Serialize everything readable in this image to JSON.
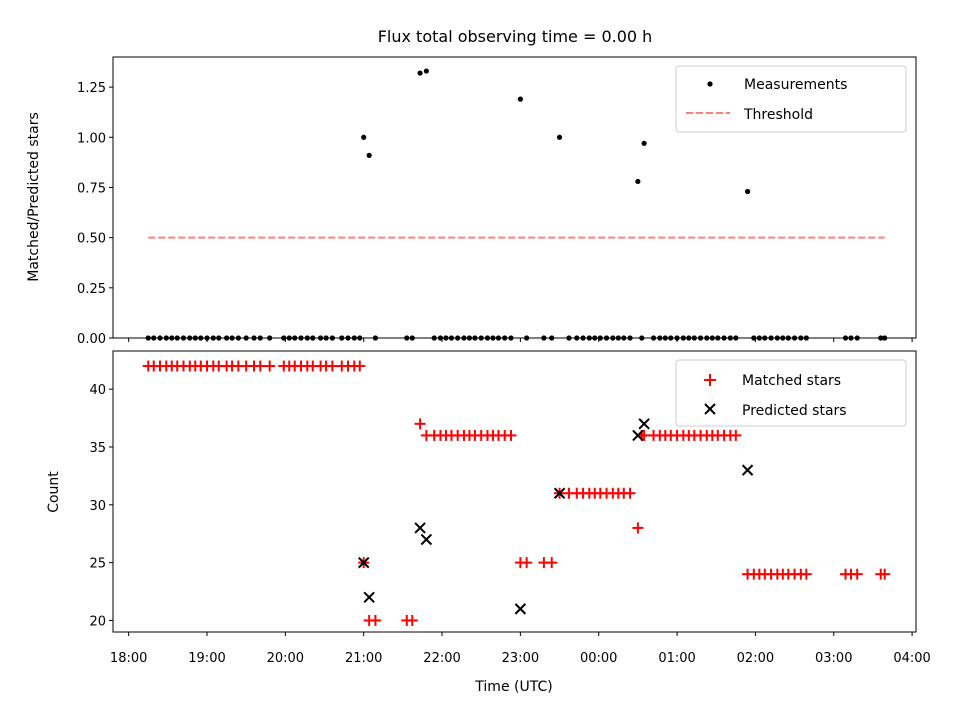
{
  "chart_data": [
    {
      "type": "scatter",
      "title": "Flux total observing time = 0.00 h",
      "ylabel": "Matched/Predicted stars",
      "xlabel": "",
      "x_unit": "hours since 18:00 UTC",
      "xlim": [
        -0.2,
        10.05
      ],
      "ylim": [
        0.0,
        1.4
      ],
      "yticks": [
        0.0,
        0.25,
        0.5,
        0.75,
        1.0,
        1.25
      ],
      "ytick_labels": [
        "0.00",
        "0.25",
        "0.50",
        "0.75",
        "1.00",
        "1.25"
      ],
      "legend_position": "top-right",
      "legend": [
        {
          "label": "Measurements",
          "marker": "dot",
          "color": "#000000"
        },
        {
          "label": "Threshold",
          "marker": "dashed-line",
          "color": "#ff7f7f"
        }
      ],
      "series": [
        {
          "name": "Measurements",
          "color": "#000000",
          "points": [
            [
              0.25,
              0
            ],
            [
              0.32,
              0
            ],
            [
              0.4,
              0
            ],
            [
              0.48,
              0
            ],
            [
              0.55,
              0
            ],
            [
              0.62,
              0
            ],
            [
              0.7,
              0
            ],
            [
              0.78,
              0
            ],
            [
              0.85,
              0
            ],
            [
              0.92,
              0
            ],
            [
              1.0,
              0
            ],
            [
              1.08,
              0
            ],
            [
              1.15,
              0
            ],
            [
              1.25,
              0
            ],
            [
              1.32,
              0
            ],
            [
              1.4,
              0
            ],
            [
              1.5,
              0
            ],
            [
              1.6,
              0
            ],
            [
              1.68,
              0
            ],
            [
              1.8,
              0
            ],
            [
              1.98,
              0
            ],
            [
              2.05,
              0
            ],
            [
              2.12,
              0
            ],
            [
              2.2,
              0
            ],
            [
              2.28,
              0
            ],
            [
              2.35,
              0
            ],
            [
              2.45,
              0
            ],
            [
              2.52,
              0
            ],
            [
              2.6,
              0
            ],
            [
              2.72,
              0
            ],
            [
              2.8,
              0
            ],
            [
              2.88,
              0
            ],
            [
              2.95,
              0
            ],
            [
              3.0,
              1.0
            ],
            [
              3.07,
              0.91
            ],
            [
              3.15,
              0
            ],
            [
              3.55,
              0
            ],
            [
              3.62,
              0
            ],
            [
              3.72,
              1.32
            ],
            [
              3.8,
              1.33
            ],
            [
              3.9,
              0
            ],
            [
              3.98,
              0
            ],
            [
              4.05,
              0
            ],
            [
              4.12,
              0
            ],
            [
              4.2,
              0
            ],
            [
              4.28,
              0
            ],
            [
              4.35,
              0
            ],
            [
              4.42,
              0
            ],
            [
              4.5,
              0
            ],
            [
              4.58,
              0
            ],
            [
              4.65,
              0
            ],
            [
              4.72,
              0
            ],
            [
              4.8,
              0
            ],
            [
              4.88,
              0
            ],
            [
              5.0,
              1.19
            ],
            [
              5.08,
              0
            ],
            [
              5.3,
              0
            ],
            [
              5.4,
              0
            ],
            [
              5.5,
              1.0
            ],
            [
              5.62,
              0
            ],
            [
              5.72,
              0
            ],
            [
              5.8,
              0
            ],
            [
              5.88,
              0
            ],
            [
              5.95,
              0
            ],
            [
              6.02,
              0
            ],
            [
              6.1,
              0
            ],
            [
              6.18,
              0
            ],
            [
              6.25,
              0
            ],
            [
              6.32,
              0
            ],
            [
              6.4,
              0
            ],
            [
              6.5,
              0.78
            ],
            [
              6.55,
              0
            ],
            [
              6.58,
              0.97
            ],
            [
              6.7,
              0
            ],
            [
              6.78,
              0
            ],
            [
              6.85,
              0
            ],
            [
              6.92,
              0
            ],
            [
              7.0,
              0
            ],
            [
              7.08,
              0
            ],
            [
              7.15,
              0
            ],
            [
              7.22,
              0
            ],
            [
              7.3,
              0
            ],
            [
              7.38,
              0
            ],
            [
              7.45,
              0
            ],
            [
              7.52,
              0
            ],
            [
              7.6,
              0
            ],
            [
              7.68,
              0
            ],
            [
              7.75,
              0
            ],
            [
              7.9,
              0.73
            ],
            [
              7.98,
              0
            ],
            [
              8.05,
              0
            ],
            [
              8.12,
              0
            ],
            [
              8.2,
              0
            ],
            [
              8.28,
              0
            ],
            [
              8.35,
              0
            ],
            [
              8.42,
              0
            ],
            [
              8.5,
              0
            ],
            [
              8.58,
              0
            ],
            [
              8.65,
              0
            ],
            [
              9.15,
              0
            ],
            [
              9.22,
              0
            ],
            [
              9.3,
              0
            ],
            [
              9.6,
              0
            ],
            [
              9.65,
              0
            ]
          ]
        },
        {
          "name": "Threshold",
          "color": "#ff7f7f",
          "style": "dashed",
          "points": [
            [
              0.25,
              0.5
            ],
            [
              9.65,
              0.5
            ]
          ]
        }
      ]
    },
    {
      "type": "scatter",
      "title": "",
      "ylabel": "Count",
      "xlabel": "Time (UTC)",
      "x_unit": "hours since 18:00 UTC",
      "xlim": [
        -0.2,
        10.05
      ],
      "ylim": [
        19,
        43.3
      ],
      "yticks": [
        20,
        25,
        30,
        35,
        40
      ],
      "ytick_labels": [
        "20",
        "25",
        "30",
        "35",
        "40"
      ],
      "xticks": [
        0,
        1,
        2,
        3,
        4,
        5,
        6,
        7,
        8,
        9,
        10
      ],
      "xtick_labels": [
        "18:00",
        "19:00",
        "20:00",
        "21:00",
        "22:00",
        "23:00",
        "00:00",
        "01:00",
        "02:00",
        "03:00",
        "04:00"
      ],
      "legend_position": "top-right",
      "legend": [
        {
          "label": "Matched stars",
          "marker": "plus",
          "color": "#ff0000"
        },
        {
          "label": "Predicted stars",
          "marker": "x",
          "color": "#000000"
        }
      ],
      "series": [
        {
          "name": "Matched stars",
          "color": "#ff0000",
          "marker": "plus",
          "points": [
            [
              0.25,
              42
            ],
            [
              0.32,
              42
            ],
            [
              0.4,
              42
            ],
            [
              0.48,
              42
            ],
            [
              0.55,
              42
            ],
            [
              0.62,
              42
            ],
            [
              0.7,
              42
            ],
            [
              0.78,
              42
            ],
            [
              0.85,
              42
            ],
            [
              0.92,
              42
            ],
            [
              1.0,
              42
            ],
            [
              1.08,
              42
            ],
            [
              1.15,
              42
            ],
            [
              1.25,
              42
            ],
            [
              1.32,
              42
            ],
            [
              1.4,
              42
            ],
            [
              1.5,
              42
            ],
            [
              1.6,
              42
            ],
            [
              1.68,
              42
            ],
            [
              1.8,
              42
            ],
            [
              1.98,
              42
            ],
            [
              2.05,
              42
            ],
            [
              2.12,
              42
            ],
            [
              2.2,
              42
            ],
            [
              2.28,
              42
            ],
            [
              2.35,
              42
            ],
            [
              2.45,
              42
            ],
            [
              2.52,
              42
            ],
            [
              2.6,
              42
            ],
            [
              2.72,
              42
            ],
            [
              2.8,
              42
            ],
            [
              2.88,
              42
            ],
            [
              2.95,
              42
            ],
            [
              3.0,
              25
            ],
            [
              3.07,
              20
            ],
            [
              3.15,
              20
            ],
            [
              3.55,
              20
            ],
            [
              3.62,
              20
            ],
            [
              3.72,
              37
            ],
            [
              3.8,
              36
            ],
            [
              3.9,
              36
            ],
            [
              3.98,
              36
            ],
            [
              4.05,
              36
            ],
            [
              4.12,
              36
            ],
            [
              4.2,
              36
            ],
            [
              4.28,
              36
            ],
            [
              4.35,
              36
            ],
            [
              4.42,
              36
            ],
            [
              4.5,
              36
            ],
            [
              4.58,
              36
            ],
            [
              4.65,
              36
            ],
            [
              4.72,
              36
            ],
            [
              4.8,
              36
            ],
            [
              4.88,
              36
            ],
            [
              5.0,
              25
            ],
            [
              5.08,
              25
            ],
            [
              5.3,
              25
            ],
            [
              5.4,
              25
            ],
            [
              5.5,
              31
            ],
            [
              5.62,
              31
            ],
            [
              5.72,
              31
            ],
            [
              5.8,
              31
            ],
            [
              5.88,
              31
            ],
            [
              5.95,
              31
            ],
            [
              6.02,
              31
            ],
            [
              6.1,
              31
            ],
            [
              6.18,
              31
            ],
            [
              6.25,
              31
            ],
            [
              6.32,
              31
            ],
            [
              6.4,
              31
            ],
            [
              6.5,
              28
            ],
            [
              6.55,
              36
            ],
            [
              6.58,
              36
            ],
            [
              6.7,
              36
            ],
            [
              6.78,
              36
            ],
            [
              6.85,
              36
            ],
            [
              6.92,
              36
            ],
            [
              7.0,
              36
            ],
            [
              7.08,
              36
            ],
            [
              7.15,
              36
            ],
            [
              7.22,
              36
            ],
            [
              7.3,
              36
            ],
            [
              7.38,
              36
            ],
            [
              7.45,
              36
            ],
            [
              7.52,
              36
            ],
            [
              7.6,
              36
            ],
            [
              7.68,
              36
            ],
            [
              7.75,
              36
            ],
            [
              7.9,
              24
            ],
            [
              7.98,
              24
            ],
            [
              8.05,
              24
            ],
            [
              8.12,
              24
            ],
            [
              8.2,
              24
            ],
            [
              8.28,
              24
            ],
            [
              8.35,
              24
            ],
            [
              8.42,
              24
            ],
            [
              8.5,
              24
            ],
            [
              8.58,
              24
            ],
            [
              8.65,
              24
            ],
            [
              9.15,
              24
            ],
            [
              9.22,
              24
            ],
            [
              9.3,
              24
            ],
            [
              9.6,
              24
            ],
            [
              9.65,
              24
            ]
          ]
        },
        {
          "name": "Predicted stars",
          "color": "#000000",
          "marker": "x",
          "points": [
            [
              3.0,
              25
            ],
            [
              3.07,
              22
            ],
            [
              3.72,
              28
            ],
            [
              3.8,
              27
            ],
            [
              5.0,
              21
            ],
            [
              5.5,
              31
            ],
            [
              6.5,
              36
            ],
            [
              6.58,
              37
            ],
            [
              7.9,
              33
            ]
          ]
        }
      ]
    }
  ]
}
